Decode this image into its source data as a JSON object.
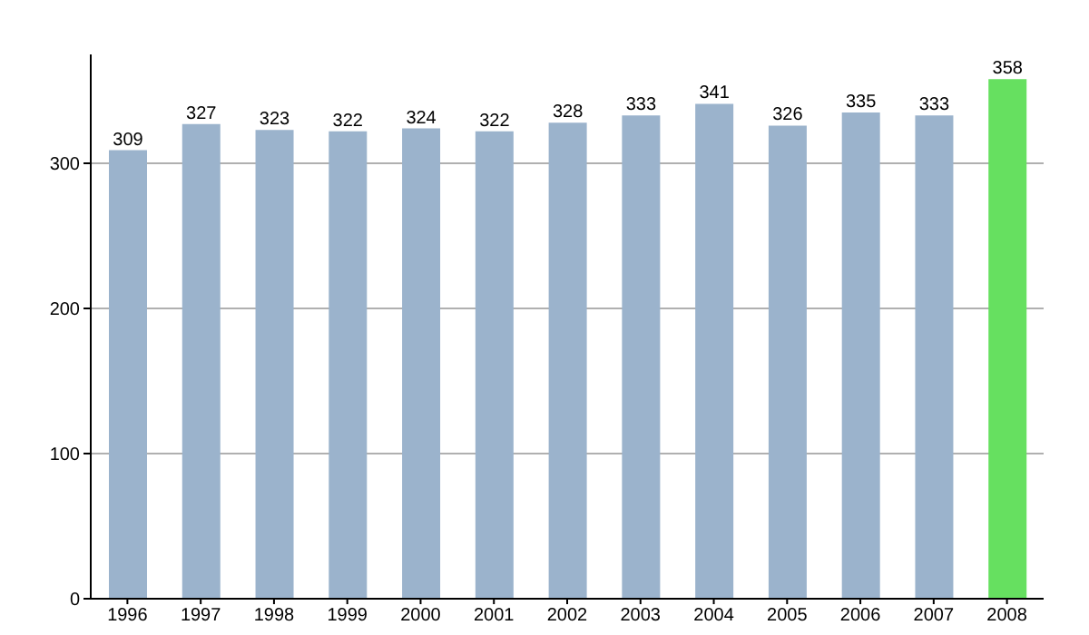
{
  "chart_data": {
    "type": "bar",
    "categories": [
      "1996",
      "1997",
      "1998",
      "1999",
      "2000",
      "2001",
      "2002",
      "2003",
      "2004",
      "2005",
      "2006",
      "2007",
      "2008"
    ],
    "values": [
      309,
      327,
      323,
      322,
      324,
      322,
      328,
      333,
      341,
      326,
      335,
      333,
      358
    ],
    "colors": [
      "#9bb3cc",
      "#9bb3cc",
      "#9bb3cc",
      "#9bb3cc",
      "#9bb3cc",
      "#9bb3cc",
      "#9bb3cc",
      "#9bb3cc",
      "#9bb3cc",
      "#9bb3cc",
      "#9bb3cc",
      "#9bb3cc",
      "#66e060"
    ],
    "ylim": [
      0,
      375
    ],
    "yticks": [
      0,
      100,
      200,
      300
    ],
    "grid": "y",
    "data_labels": true
  }
}
